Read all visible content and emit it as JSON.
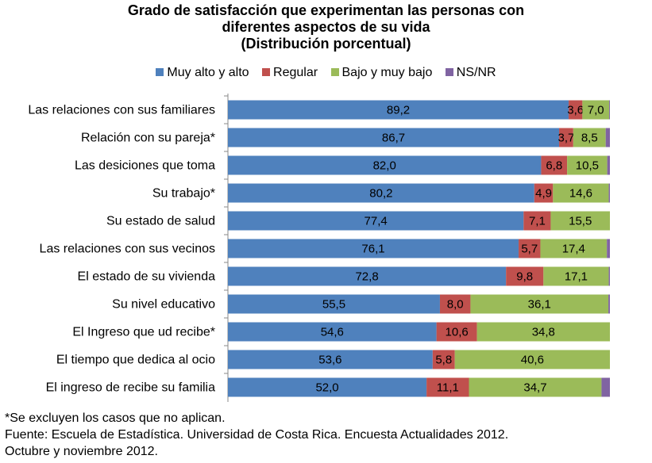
{
  "chart_data": {
    "type": "bar",
    "orientation": "horizontal",
    "stacked": true,
    "title_lines": [
      "Grado de satisfacción que experimentan las personas con",
      "diferentes aspectos de su vida",
      "(Distribución porcentual)"
    ],
    "categories": [
      "Las relaciones con sus familiares",
      "Relación con su pareja*",
      "Las desiciones que toma",
      "Su trabajo*",
      "Su estado de salud",
      "Las relaciones con sus vecinos",
      "El estado de su vivienda",
      "Su nivel educativo",
      "El Ingreso que ud recibe*",
      "El tiempo que dedica al ocio",
      "El ingreso de recibe su familia"
    ],
    "series": [
      {
        "name": "Muy alto y alto",
        "color": "#4F81BD",
        "values": [
          89.2,
          86.7,
          82.0,
          80.2,
          77.4,
          76.1,
          72.8,
          55.5,
          54.6,
          53.6,
          52.0
        ],
        "labels": [
          "89,2",
          "86,7",
          "82,0",
          "80,2",
          "77,4",
          "76,1",
          "72,8",
          "55,5",
          "54,6",
          "53,6",
          "52,0"
        ]
      },
      {
        "name": "Regular",
        "color": "#C0504D",
        "values": [
          3.6,
          3.7,
          6.8,
          4.9,
          7.1,
          5.7,
          9.8,
          8.0,
          10.6,
          5.8,
          11.1
        ],
        "labels": [
          "3,6",
          "3,7",
          "6,8",
          "4,9",
          "7,1",
          "5,7",
          "9,8",
          "8,0",
          "10,6",
          "5,8",
          "11,1"
        ]
      },
      {
        "name": "Bajo y muy bajo",
        "color": "#9BBB59",
        "values": [
          7.0,
          8.5,
          10.5,
          14.6,
          15.5,
          17.4,
          17.1,
          36.1,
          34.8,
          40.6,
          34.7
        ],
        "labels": [
          "7,0",
          "8,5",
          "10,5",
          "14,6",
          "15,5",
          "17,4",
          "17,1",
          "36,1",
          "34,8",
          "40,6",
          "34,7"
        ]
      },
      {
        "name": "NS/NR",
        "color": "#8064A2",
        "values": [
          0.2,
          1.1,
          0.7,
          0.3,
          0.0,
          0.8,
          0.3,
          0.4,
          0.0,
          0.0,
          2.2
        ],
        "labels": [
          "",
          "",
          "",
          "",
          "",
          "",
          "",
          "",
          "",
          "",
          ""
        ]
      }
    ],
    "xlim": [
      0,
      100
    ],
    "legend_position": "top",
    "grid": false
  },
  "notes": [
    "*Se excluyen los casos que no aplican.",
    "Fuente: Escuela de Estadística. Universidad de Costa Rica. Encuesta Actualidades 2012.",
    "Octubre y noviembre 2012."
  ]
}
